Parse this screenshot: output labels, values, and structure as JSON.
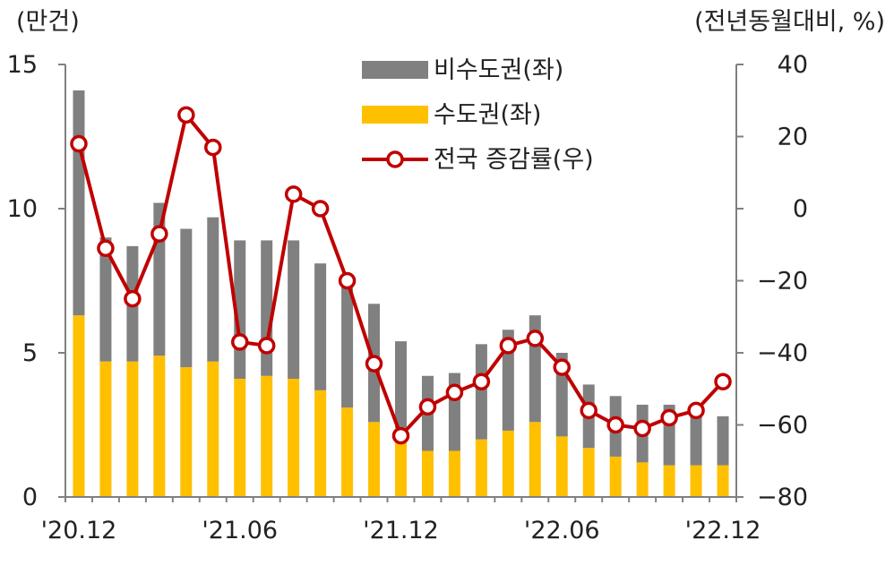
{
  "chart_data": {
    "type": "bar",
    "bar_mode": "stacked",
    "left_axis_unit": "(만건)",
    "right_axis_unit": "(전년동월대비, %)",
    "y_left": {
      "range": [
        0,
        15
      ],
      "ticks": [
        0,
        5,
        10,
        15
      ]
    },
    "y_right": {
      "range": [
        -80,
        40
      ],
      "ticks": [
        -80,
        -60,
        -40,
        -20,
        0,
        20,
        40
      ]
    },
    "x_tick_labels": [
      "'20.12",
      "'21.06",
      "'21.12",
      "'22.06",
      "'22.12"
    ],
    "x_tick_positions": [
      0,
      6,
      12,
      18,
      24
    ],
    "categories": [
      "'20.12",
      "'21.01",
      "'21.02",
      "'21.03",
      "'21.04",
      "'21.05",
      "'21.06",
      "'21.07",
      "'21.08",
      "'21.09",
      "'21.10",
      "'21.11",
      "'21.12",
      "'22.01",
      "'22.02",
      "'22.03",
      "'22.04",
      "'22.05",
      "'22.06",
      "'22.07",
      "'22.08",
      "'22.09",
      "'22.10",
      "'22.11",
      "'22.12"
    ],
    "series": [
      {
        "name": "수도권(좌)",
        "type": "bar",
        "axis": "left",
        "color": "#FFC000",
        "values": [
          6.3,
          4.7,
          4.7,
          4.9,
          4.5,
          4.7,
          4.1,
          4.2,
          4.1,
          3.7,
          3.1,
          2.6,
          2.4,
          1.6,
          1.6,
          2.0,
          2.3,
          2.6,
          2.1,
          1.7,
          1.4,
          1.2,
          1.1,
          1.1,
          1.1
        ]
      },
      {
        "name": "비수도권(좌)",
        "type": "bar",
        "axis": "left",
        "color": "#808080",
        "values": [
          7.8,
          4.3,
          4.0,
          5.3,
          4.8,
          5.0,
          4.8,
          4.7,
          4.8,
          4.4,
          4.5,
          4.1,
          3.0,
          2.6,
          2.7,
          3.3,
          3.5,
          3.7,
          2.9,
          2.2,
          2.1,
          2.0,
          2.1,
          1.9,
          1.7
        ]
      },
      {
        "name": "전국 증감률(우)",
        "type": "line",
        "axis": "right",
        "color": "#C00000",
        "values": [
          18,
          -11,
          -25,
          -7,
          26,
          17,
          -37,
          -38,
          4,
          0,
          -20,
          -43,
          -63,
          -55,
          -51,
          -48,
          -38,
          -36,
          -44,
          -56,
          -60,
          -61,
          -58,
          -56,
          -48
        ]
      }
    ],
    "legend": {
      "position": "top-center",
      "order": [
        "비수도권(좌)",
        "수도권(좌)",
        "전국 증감률(우)"
      ]
    },
    "grid": false
  }
}
